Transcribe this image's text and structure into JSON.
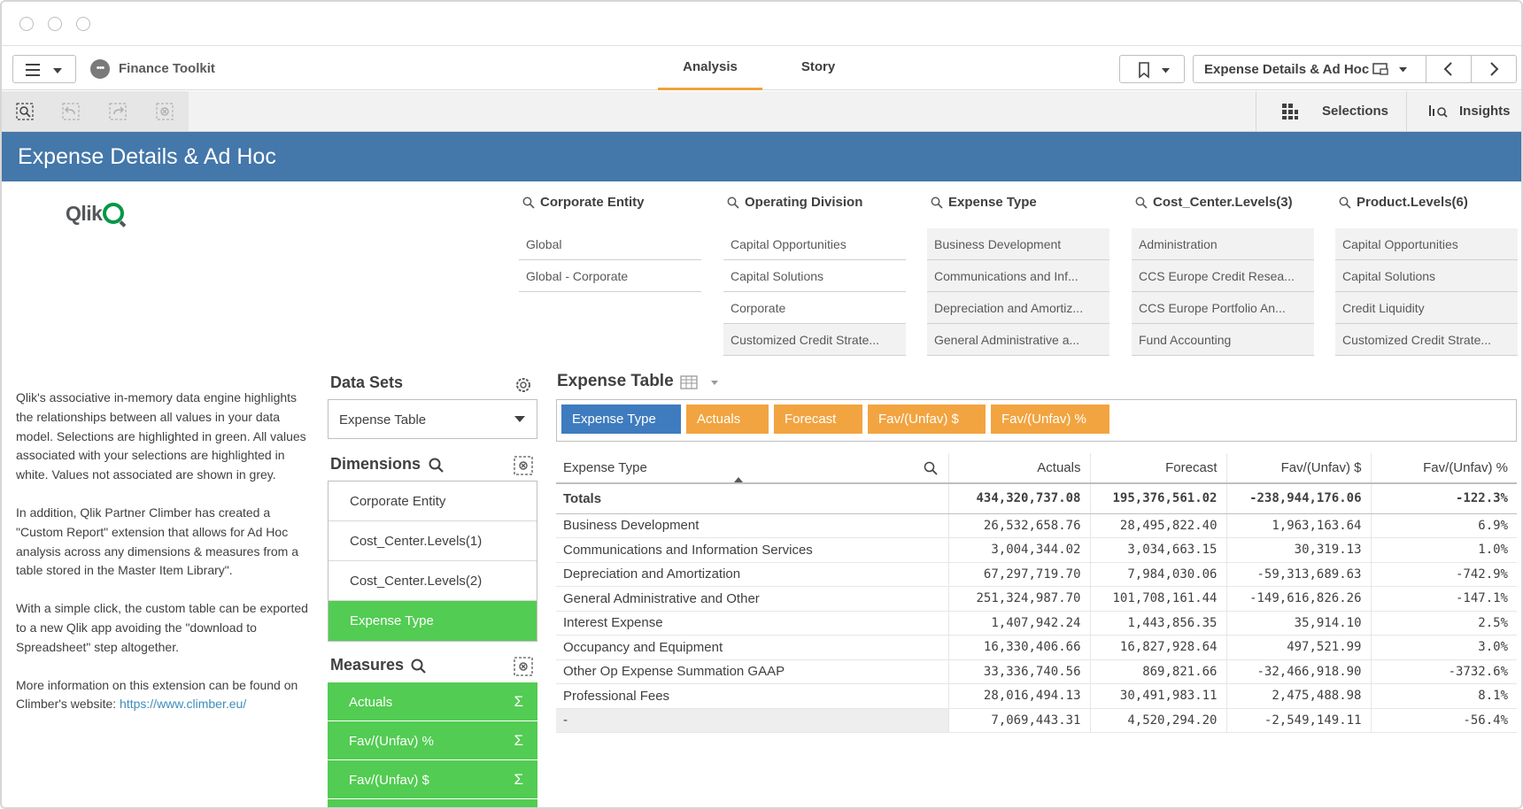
{
  "app": {
    "name": "Finance Toolkit"
  },
  "tabs": [
    {
      "label": "Analysis",
      "active": true
    },
    {
      "label": "Story",
      "active": false
    }
  ],
  "sheet_nav": {
    "current_sheet": "Expense Details & Ad Hoc"
  },
  "selection_bar": {
    "selections_label": "Selections",
    "insights_label": "Insights"
  },
  "banner": {
    "title": "Expense Details & Ad Hoc"
  },
  "logo": {
    "text": "Qlik"
  },
  "filters": [
    {
      "title": "Corporate Entity",
      "items": [
        "Global",
        "Global - Corporate"
      ]
    },
    {
      "title": "Operating Division",
      "items": [
        "Capital Opportunities",
        "Capital Solutions",
        "Corporate",
        "Customized Credit Strate..."
      ]
    },
    {
      "title": "Expense Type",
      "items": [
        "Business Development",
        "Communications and Inf...",
        "Depreciation and Amortiz...",
        "General Administrative a..."
      ]
    },
    {
      "title": "Cost_Center.Levels(3)",
      "items": [
        "Administration",
        "CCS Europe Credit Resea...",
        "CCS Europe Portfolio An...",
        "Fund Accounting"
      ]
    },
    {
      "title": "Product.Levels(6)",
      "items": [
        "Capital Opportunities",
        "Capital Solutions",
        "Credit Liquidity",
        "Customized Credit Strate..."
      ]
    }
  ],
  "description": {
    "p1": "Qlik's associative in-memory data engine highlights the relationships between all values in your data model. Selections are highlighted in green. All values associated with your selections are highlighted in white. Values not associated are shown in grey.",
    "p2": "In addition, Qlik Partner Climber has created a \"Custom Report\" extension that allows for Ad Hoc analysis across any dimensions & measures from a table stored in the Master Item Library\".",
    "p3": "With a simple click, the custom table can be exported to a new Qlik app avoiding the \"download to Spreadsheet\" step altogether.",
    "p4": "More information on this extension can be found on Climber's website: ",
    "link": "https://www.climber.eu/"
  },
  "data_sets": {
    "title": "Data Sets",
    "selected": "Expense Table"
  },
  "dimensions": {
    "title": "Dimensions",
    "items": [
      {
        "label": "Corporate Entity",
        "selected": false
      },
      {
        "label": "Cost_Center.Levels(1)",
        "selected": false
      },
      {
        "label": "Cost_Center.Levels(2)",
        "selected": false
      },
      {
        "label": "Expense Type",
        "selected": true
      }
    ]
  },
  "measures": {
    "title": "Measures",
    "items": [
      {
        "label": "Actuals"
      },
      {
        "label": "Fav/(Unfav) %"
      },
      {
        "label": "Fav/(Unfav) $"
      }
    ]
  },
  "expense_table": {
    "title": "Expense Table",
    "chips": [
      {
        "label": "Expense Type",
        "kind": "dimension",
        "color": "#3f7cbf"
      },
      {
        "label": "Actuals",
        "kind": "measure",
        "color": "#f2a440"
      },
      {
        "label": "Forecast",
        "kind": "measure",
        "color": "#f2a440"
      },
      {
        "label": "Fav/(Unfav) $",
        "kind": "measure",
        "color": "#f2a440"
      },
      {
        "label": "Fav/(Unfav) %",
        "kind": "measure",
        "color": "#f2a440"
      }
    ],
    "columns": [
      "Expense Type",
      "Actuals",
      "Forecast",
      "Fav/(Unfav) $",
      "Fav/(Unfav) %"
    ],
    "totals": [
      "Totals",
      "434,320,737.08",
      "195,376,561.02",
      "-238,944,176.06",
      "-122.3%"
    ],
    "rows": [
      [
        "Business Development",
        "26,532,658.76",
        "28,495,822.40",
        "1,963,163.64",
        "6.9%"
      ],
      [
        "Communications and Information Services",
        "3,004,344.02",
        "3,034,663.15",
        "30,319.13",
        "1.0%"
      ],
      [
        "Depreciation and Amortization",
        "67,297,719.70",
        "7,984,030.06",
        "-59,313,689.63",
        "-742.9%"
      ],
      [
        "General Administrative and Other",
        "251,324,987.70",
        "101,708,161.44",
        "-149,616,826.26",
        "-147.1%"
      ],
      [
        "Interest Expense",
        "1,407,942.24",
        "1,443,856.35",
        "35,914.10",
        "2.5%"
      ],
      [
        "Occupancy and Equipment",
        "16,330,406.66",
        "16,827,928.64",
        "497,521.99",
        "3.0%"
      ],
      [
        "Other Op Expense Summation GAAP",
        "33,336,740.56",
        "869,821.66",
        "-32,466,918.90",
        "-3732.6%"
      ],
      [
        "Professional Fees",
        "28,016,494.13",
        "30,491,983.11",
        "2,475,488.98",
        "8.1%"
      ],
      [
        "-",
        "7,069,443.31",
        "4,520,294.20",
        "-2,549,149.11",
        "-56.4%"
      ]
    ]
  },
  "colors": {
    "banner": "#4477aa",
    "selected": "#52cc52",
    "dimension_chip": "#3f7cbf",
    "measure_chip": "#f2a440",
    "tab_accent": "#f0a13c"
  }
}
